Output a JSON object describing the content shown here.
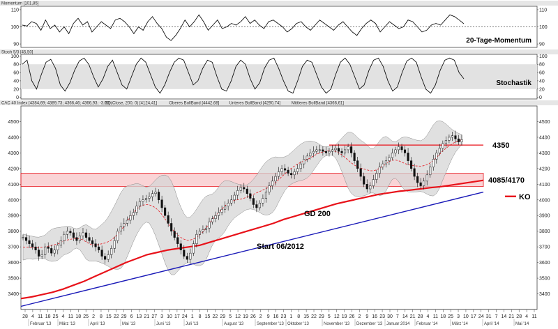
{
  "chart_data": [
    {
      "type": "line",
      "title": "Momentum [101,85]",
      "annotation": "20-Tage-Momentum",
      "ylim": [
        90,
        110
      ],
      "y_ticks": [
        90,
        100,
        110
      ],
      "reference_line": 100,
      "series": [
        {
          "values": [
            101,
            100.5,
            103,
            102,
            98,
            104,
            99,
            101,
            97,
            100,
            96,
            102,
            105,
            101,
            103,
            97,
            100,
            103,
            101,
            99,
            104,
            105,
            103,
            100,
            96,
            100,
            98,
            103,
            106,
            102,
            99,
            94,
            92,
            95,
            99,
            104,
            100,
            103,
            107,
            103,
            98,
            101,
            104,
            99,
            100,
            102,
            101,
            103,
            106,
            102,
            104,
            101,
            99,
            103,
            104,
            102,
            100,
            97,
            99,
            102,
            103,
            100,
            98,
            101,
            104,
            102,
            100,
            98,
            101,
            103,
            100,
            97,
            95,
            99,
            102,
            104,
            102,
            97,
            100,
            103,
            101,
            99,
            100,
            104,
            103,
            100,
            97,
            98,
            101,
            102,
            101,
            104,
            107,
            106,
            104,
            101.85
          ]
        }
      ]
    },
    {
      "type": "line",
      "title": "Stoch 5/3 [45,50]",
      "annotation": "Stochastik",
      "ylim": [
        0,
        100
      ],
      "y_ticks": [
        0,
        20,
        40,
        60,
        80,
        100
      ],
      "band": [
        20,
        80
      ],
      "series": [
        {
          "values": [
            80,
            90,
            40,
            20,
            55,
            85,
            92,
            70,
            30,
            15,
            35,
            65,
            88,
            95,
            80,
            50,
            25,
            45,
            75,
            90,
            60,
            30,
            20,
            50,
            80,
            95,
            85,
            55,
            25,
            10,
            30,
            60,
            85,
            95,
            90,
            60,
            30,
            40,
            70,
            90,
            85,
            50,
            20,
            15,
            40,
            75,
            90,
            80,
            45,
            20,
            35,
            70,
            90,
            95,
            70,
            40,
            15,
            10,
            40,
            75,
            90,
            85,
            55,
            25,
            10,
            20,
            55,
            85,
            95,
            80,
            50,
            20,
            30,
            65,
            90,
            95,
            75,
            40,
            15,
            25,
            60,
            88,
            95,
            85,
            50,
            20,
            10,
            30,
            65,
            90,
            95,
            90,
            60,
            45
          ]
        }
      ]
    },
    {
      "type": "line",
      "title": "CAC 40 Index [4384,69; 4389,73; 4366,46; 4366,93; -3,91]",
      "legend": [
        "GD(Close, 200, 0) [4124,41]",
        "Oberes BollBand [4442,68]",
        "Unteres BollBand [4290,74]",
        "Mittleres BollBand [4366,61]"
      ],
      "ylim": [
        3300,
        4600
      ],
      "y_ticks": [
        3400,
        3500,
        3600,
        3700,
        3800,
        3900,
        4000,
        4100,
        4200,
        4300,
        4400,
        4500
      ],
      "close": [
        3760,
        3740,
        3720,
        3700,
        3680,
        3640,
        3650,
        3700,
        3690,
        3660,
        3680,
        3710,
        3740,
        3780,
        3800,
        3790,
        3760,
        3740,
        3770,
        3790,
        3760,
        3740,
        3720,
        3700,
        3680,
        3640,
        3620,
        3650,
        3690,
        3740,
        3800,
        3830,
        3850,
        3870,
        3900,
        3920,
        3960,
        3990,
        4000,
        4010,
        4020,
        4040,
        4050,
        4000,
        3950,
        3900,
        3850,
        3800,
        3760,
        3720,
        3680,
        3640,
        3620,
        3660,
        3720,
        3780,
        3800,
        3810,
        3820,
        3860,
        3880,
        3900,
        3920,
        3940,
        3960,
        3980,
        4000,
        4030,
        4060,
        4080,
        4070,
        4040,
        4010,
        3970,
        3950,
        3980,
        4010,
        4050,
        4090,
        4120,
        4150,
        4180,
        4200,
        4190,
        4170,
        4160,
        4180,
        4200,
        4230,
        4260,
        4280,
        4300,
        4310,
        4320,
        4320,
        4310,
        4300,
        4310,
        4320,
        4330,
        4310,
        4300,
        4320,
        4340,
        4300,
        4250,
        4200,
        4150,
        4100,
        4070,
        4090,
        4130,
        4170,
        4210,
        4230,
        4250,
        4270,
        4300,
        4320,
        4340,
        4320,
        4300,
        4250,
        4200,
        4150,
        4110,
        4090,
        4120,
        4160,
        4210,
        4260,
        4300,
        4330,
        4360,
        4380,
        4400,
        4410,
        4390,
        4370,
        4385
      ],
      "series": [
        {
          "name": "GD 200",
          "values": [
            3370,
            3380,
            3395,
            3410,
            3430,
            3455,
            3480,
            3510,
            3540,
            3570,
            3600,
            3625,
            3650,
            3665,
            3680,
            3690,
            3700,
            3710,
            3730,
            3750,
            3770,
            3790,
            3810,
            3830,
            3850,
            3875,
            3895,
            3915,
            3935,
            3955,
            3975,
            3990,
            4005,
            4020,
            4035,
            4045,
            4055,
            4062,
            4070,
            4078,
            4085,
            4095,
            4105,
            4115,
            4125
          ]
        },
        {
          "name": "Start 06/2012",
          "values": [
            3320,
            4050
          ]
        }
      ],
      "annotations": [
        {
          "text": "4350",
          "value": 4350
        },
        {
          "text": "4085/4170",
          "range": [
            4085,
            4170
          ]
        },
        {
          "text": "GD 200"
        },
        {
          "text": "Start 06/2012"
        },
        {
          "text": "KO",
          "value": 4000
        }
      ],
      "x_ticks_days": [
        "28",
        "4",
        "11",
        "18",
        "25",
        "4",
        "11",
        "18",
        "25",
        "2",
        "8",
        "15",
        "22",
        "29",
        "6",
        "13",
        "21",
        "27",
        "3",
        "10",
        "17",
        "24",
        "1",
        "8",
        "15",
        "22",
        "29",
        "5",
        "12",
        "19",
        "26",
        "2",
        "9",
        "16",
        "23",
        "1",
        "8",
        "15",
        "22",
        "29",
        "5",
        "12",
        "19",
        "26",
        "2",
        "9",
        "16",
        "23",
        "30",
        "7",
        "14",
        "21",
        "28",
        "4",
        "11",
        "18",
        "25",
        "3",
        "10",
        "17",
        "24",
        "31",
        "7",
        "14",
        "21",
        "28",
        "4",
        "11"
      ],
      "x_ticks_months": [
        "Februar '13",
        "März '13",
        "April '13",
        "Mai '13",
        "Juni '13",
        "Juli '13",
        "August '13",
        "September '13",
        "Oktober '13",
        "November '13",
        "Dezember '13",
        "Januar 2014",
        "Februar '14",
        "März '14",
        "April '14",
        "Mai '14"
      ]
    }
  ],
  "colors": {
    "gd200": "#e8121a",
    "trend": "#1a1ab8",
    "band": "#f5a9ad",
    "bollinger": "#d6d6d6",
    "candle": "#111111"
  }
}
